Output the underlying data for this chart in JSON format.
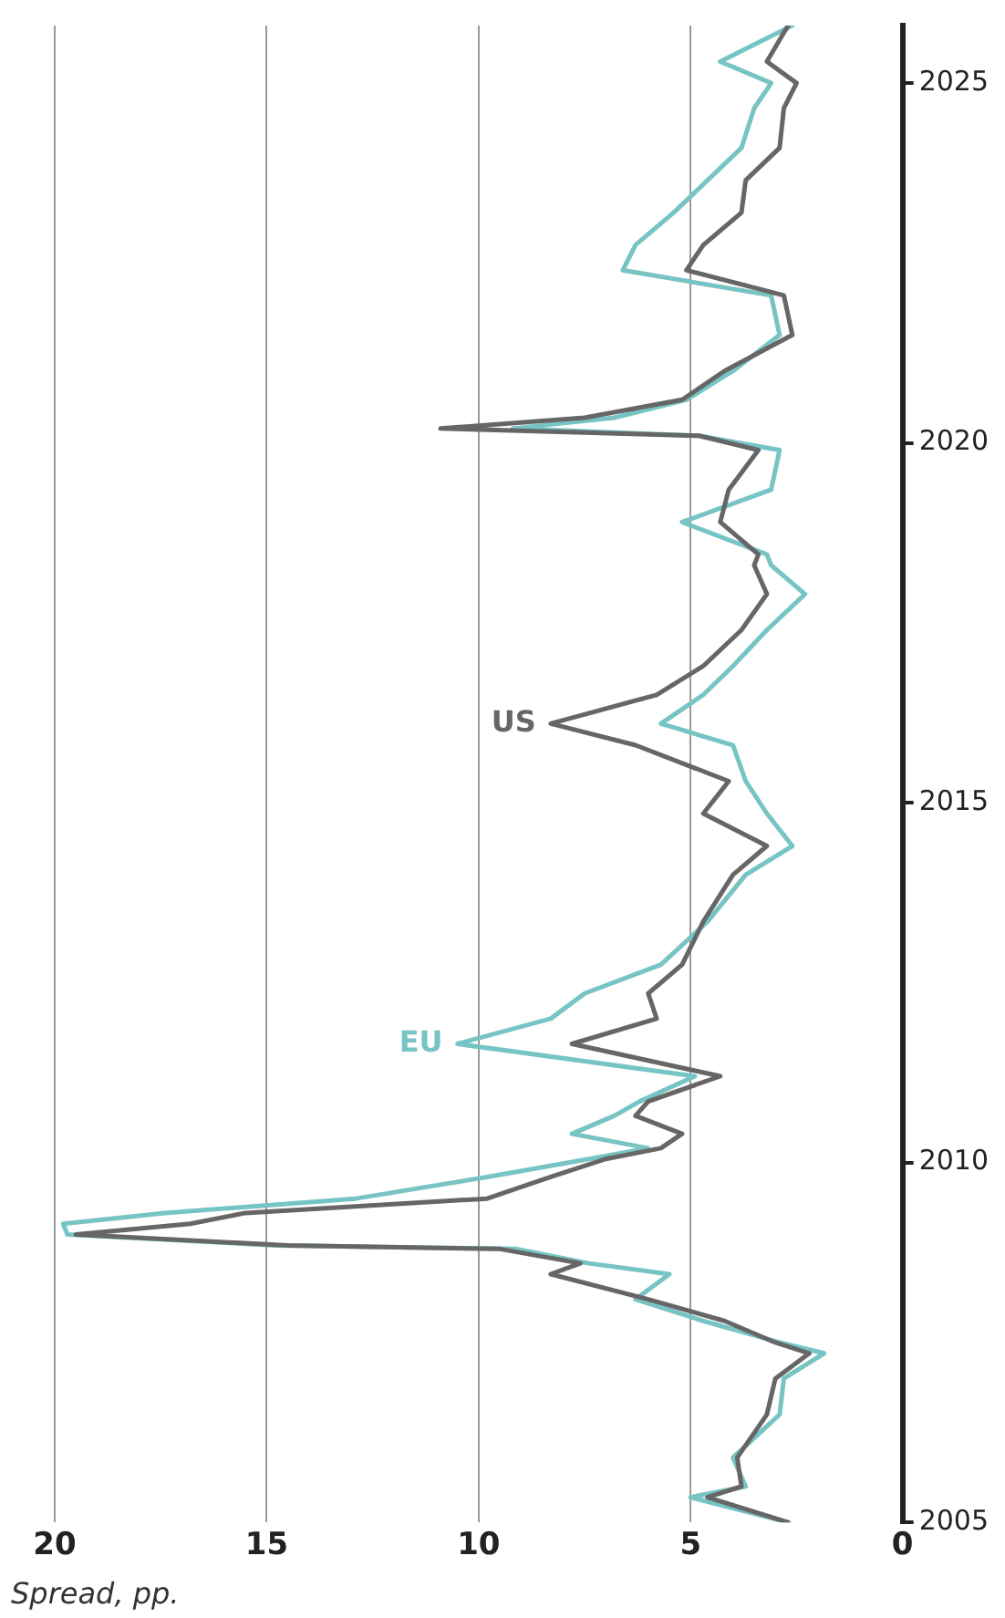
{
  "chart_data": {
    "type": "line",
    "orientation": "horizontal",
    "xlabel": "Spread, pp.",
    "xlim": [
      20,
      0
    ],
    "xticks": [
      20,
      15,
      10,
      5,
      0
    ],
    "ylim": [
      2005,
      2025.8
    ],
    "yticks": [
      2005,
      2010,
      2015,
      2020,
      2025
    ],
    "grid": "x",
    "legend": false,
    "marker": "none",
    "line_style": "solid",
    "annotations": [
      {
        "text": "US",
        "x": 8.3,
        "y": 2016.1
      },
      {
        "text": "EU",
        "x": 10.5,
        "y": 2011.65
      }
    ],
    "series": [
      {
        "color": "#666666",
        "x": [
          2005.0,
          2005.35,
          2005.5,
          2005.9,
          2006.5,
          2007.0,
          2007.35,
          2007.5,
          2007.8,
          2008.1,
          2008.45,
          2008.6,
          2008.8,
          2008.85,
          2009.0,
          2009.15,
          2009.3,
          2009.5,
          2009.8,
          2010.05,
          2010.2,
          2010.4,
          2010.65,
          2010.85,
          2011.2,
          2011.65,
          2012.0,
          2012.35,
          2012.75,
          2013.35,
          2014.0,
          2014.4,
          2014.85,
          2015.3,
          2015.8,
          2016.1,
          2016.5,
          2016.9,
          2017.4,
          2017.9,
          2018.3,
          2018.45,
          2018.9,
          2019.35,
          2019.9,
          2020.1,
          2020.2,
          2020.35,
          2020.6,
          2021.0,
          2021.5,
          2022.05,
          2022.4,
          2022.75,
          2023.2,
          2023.65,
          2024.1,
          2024.65,
          2025.0,
          2025.3,
          2025.8
        ],
        "values": [
          2.7,
          4.6,
          3.8,
          3.9,
          3.2,
          3.0,
          2.2,
          3.0,
          4.2,
          6.0,
          8.3,
          7.6,
          9.5,
          14.5,
          19.5,
          16.8,
          15.5,
          9.8,
          8.3,
          7.0,
          5.7,
          5.2,
          6.3,
          6.0,
          4.3,
          7.8,
          5.8,
          6.0,
          5.2,
          4.7,
          4.0,
          3.2,
          4.7,
          4.1,
          6.3,
          8.3,
          5.8,
          4.7,
          3.8,
          3.2,
          3.5,
          3.4,
          4.3,
          4.1,
          3.4,
          4.8,
          10.9,
          7.5,
          5.2,
          4.2,
          2.6,
          2.8,
          5.1,
          4.7,
          3.8,
          3.7,
          2.9,
          2.8,
          2.5,
          3.2,
          2.7
        ]
      },
      {
        "color": "#77c4c4",
        "x": [
          2005.0,
          2005.35,
          2005.5,
          2005.9,
          2006.5,
          2007.0,
          2007.35,
          2007.5,
          2007.8,
          2008.1,
          2008.45,
          2008.6,
          2008.8,
          2008.85,
          2009.0,
          2009.15,
          2009.3,
          2009.5,
          2009.8,
          2010.05,
          2010.2,
          2010.4,
          2010.65,
          2010.85,
          2011.2,
          2011.65,
          2012.0,
          2012.35,
          2012.75,
          2013.35,
          2014.0,
          2014.4,
          2014.85,
          2015.3,
          2015.8,
          2016.1,
          2016.5,
          2016.9,
          2017.4,
          2017.9,
          2018.3,
          2018.45,
          2018.9,
          2019.35,
          2019.9,
          2020.1,
          2020.2,
          2020.35,
          2020.6,
          2021.0,
          2021.5,
          2022.05,
          2022.4,
          2022.75,
          2023.2,
          2023.65,
          2024.1,
          2024.65,
          2025.0,
          2025.3,
          2025.8
        ],
        "values": [
          2.7,
          5.0,
          3.7,
          4.0,
          2.9,
          2.8,
          1.85,
          2.9,
          4.7,
          6.3,
          5.5,
          7.4,
          9.1,
          14.8,
          19.7,
          19.8,
          17.4,
          12.9,
          9.8,
          7.4,
          6.0,
          7.8,
          6.8,
          6.2,
          4.9,
          10.5,
          8.3,
          7.5,
          5.7,
          4.6,
          3.7,
          2.6,
          3.2,
          3.7,
          4.0,
          5.7,
          4.7,
          4.0,
          3.2,
          2.3,
          3.1,
          3.2,
          5.2,
          3.1,
          2.9,
          4.8,
          9.2,
          6.8,
          5.1,
          4.0,
          2.9,
          3.1,
          6.6,
          6.3,
          5.4,
          4.6,
          3.8,
          3.5,
          3.1,
          4.3,
          2.6
        ]
      }
    ]
  }
}
